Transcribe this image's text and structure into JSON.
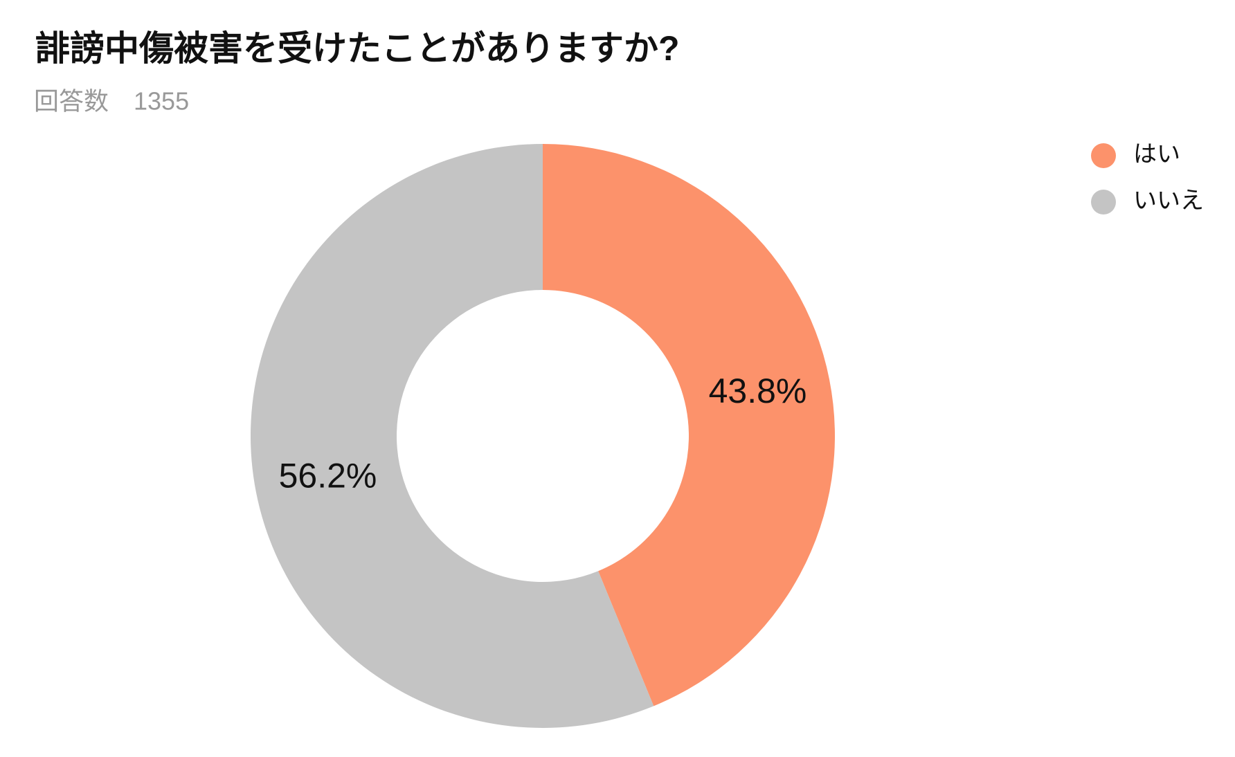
{
  "chart_data": {
    "type": "pie",
    "donut": true,
    "title": "誹謗中傷被害を受けたことがありますか?",
    "subtitle": "回答数　1355",
    "categories": [
      "はい",
      "いいえ"
    ],
    "values": [
      43.8,
      56.2
    ],
    "value_labels": [
      "43.8%",
      "56.2%"
    ],
    "colors": [
      "#fc926b",
      "#c4c4c4"
    ],
    "legend": "top-right"
  }
}
